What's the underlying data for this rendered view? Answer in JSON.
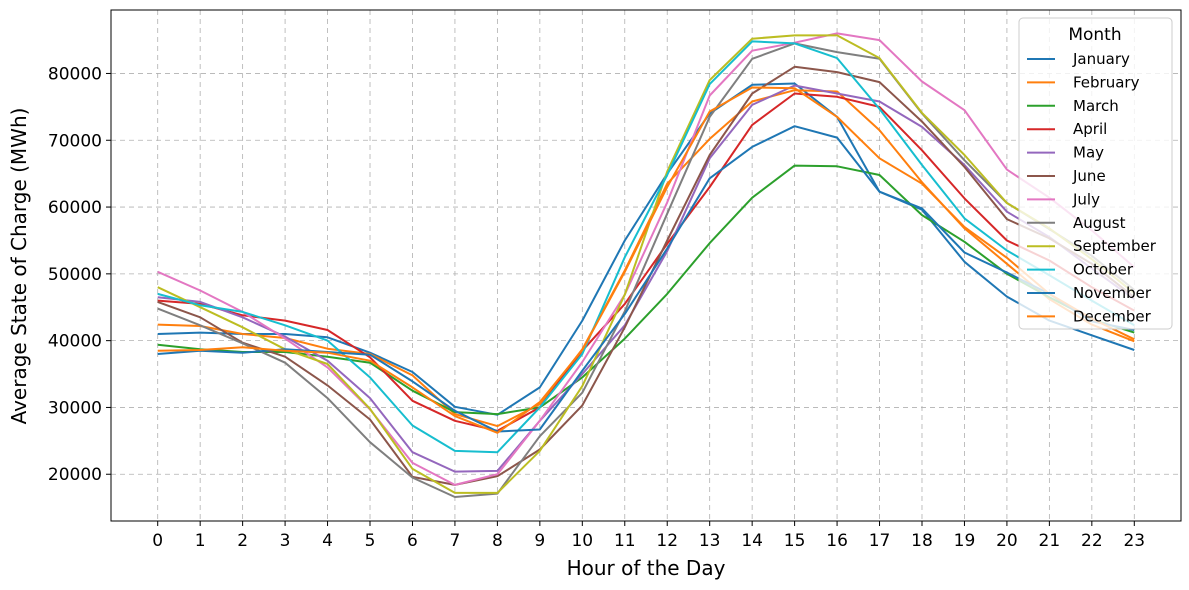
{
  "chart_data": {
    "type": "line",
    "xlabel": "Hour of the Day",
    "ylabel": "Average State of Charge (MWh)",
    "x": [
      0,
      1,
      2,
      3,
      4,
      5,
      6,
      7,
      8,
      9,
      10,
      11,
      12,
      13,
      14,
      15,
      16,
      17,
      18,
      19,
      20,
      21,
      22,
      23
    ],
    "xlim": [
      -1.1,
      24.1
    ],
    "ylim": [
      13000,
      89500
    ],
    "yticks": [
      20000,
      30000,
      40000,
      50000,
      60000,
      70000,
      80000
    ],
    "grid": true,
    "legend": {
      "title": "Month",
      "placement": "top-right"
    },
    "series": [
      {
        "name": "January",
        "color": "#1f77b4",
        "values": [
          41000,
          41200,
          41000,
          41000,
          40500,
          38200,
          35300,
          30100,
          28900,
          33000,
          43000,
          55000,
          65000,
          74000,
          78300,
          78500,
          73500,
          62300,
          59600,
          51800,
          46600,
          43000,
          40800,
          38600
        ]
      },
      {
        "name": "February",
        "color": "#ff7f0e",
        "values": [
          42400,
          42200,
          41000,
          40400,
          38800,
          38000,
          34800,
          29000,
          27200,
          30500,
          38700,
          50500,
          63500,
          70200,
          75800,
          77500,
          77300,
          71500,
          63700,
          56800,
          51500,
          46200,
          42400,
          39900
        ]
      },
      {
        "name": "March",
        "color": "#2ca02c",
        "values": [
          39400,
          38700,
          38300,
          38300,
          37600,
          36700,
          32500,
          29300,
          29000,
          30000,
          34500,
          40300,
          47000,
          54600,
          61400,
          66200,
          66100,
          64800,
          58800,
          54800,
          50000,
          46500,
          43200,
          41200
        ]
      },
      {
        "name": "April",
        "color": "#d62728",
        "values": [
          46000,
          45500,
          43800,
          43000,
          41600,
          37500,
          31000,
          28000,
          26500,
          30000,
          38500,
          45500,
          54500,
          63000,
          72300,
          77000,
          76500,
          75000,
          68500,
          61300,
          55000,
          52000,
          48000,
          44500
        ]
      },
      {
        "name": "May",
        "color": "#9467bd",
        "values": [
          46500,
          45800,
          43500,
          40600,
          37000,
          31400,
          23300,
          20400,
          20500,
          28000,
          35000,
          42300,
          53400,
          67300,
          75300,
          78200,
          77000,
          75800,
          72000,
          66300,
          59300,
          55500,
          50800,
          46200
        ]
      },
      {
        "name": "June",
        "color": "#8c564b",
        "values": [
          45800,
          43500,
          39700,
          37600,
          33300,
          28200,
          19600,
          18400,
          19700,
          23700,
          30300,
          42000,
          55000,
          67800,
          77000,
          81000,
          80200,
          78700,
          72800,
          66000,
          58200,
          55300,
          51500,
          46500
        ]
      },
      {
        "name": "July",
        "color": "#e377c2",
        "values": [
          50300,
          47500,
          44300,
          40300,
          36000,
          29700,
          21700,
          18400,
          20000,
          28000,
          36800,
          46900,
          60700,
          76700,
          83400,
          84600,
          86000,
          85000,
          78800,
          74500,
          65600,
          61400,
          56500,
          51000
        ]
      },
      {
        "name": "August",
        "color": "#7f7f7f",
        "values": [
          44800,
          42300,
          39600,
          36700,
          31400,
          24800,
          19500,
          16600,
          17100,
          25700,
          32200,
          44400,
          59000,
          73500,
          82200,
          84500,
          83200,
          82200,
          74000,
          67000,
          60600,
          56700,
          52700,
          47600
        ]
      },
      {
        "name": "September",
        "color": "#bcbd22",
        "values": [
          48000,
          45000,
          42000,
          38700,
          36500,
          29800,
          20800,
          17200,
          17200,
          23500,
          33200,
          46900,
          65300,
          79000,
          85200,
          85700,
          85700,
          82300,
          74100,
          67800,
          60600,
          56800,
          52200,
          47100
        ]
      },
      {
        "name": "October",
        "color": "#17becf",
        "values": [
          47000,
          45300,
          44300,
          42300,
          40000,
          34500,
          27300,
          23500,
          23300,
          30000,
          38000,
          52500,
          64800,
          78400,
          84800,
          84500,
          82300,
          74700,
          66300,
          58300,
          53500,
          49800,
          46000,
          42300
        ]
      },
      {
        "name": "November",
        "color": "#1f77b4",
        "values": [
          38000,
          38500,
          38200,
          38700,
          38300,
          37900,
          33900,
          29500,
          26400,
          26700,
          35500,
          44000,
          53800,
          64300,
          69000,
          72100,
          70400,
          62300,
          59800,
          53200,
          50200,
          47000,
          42900,
          41600
        ]
      },
      {
        "name": "December",
        "color": "#ff7f0e",
        "values": [
          38500,
          38600,
          39000,
          38500,
          38200,
          37000,
          33000,
          28700,
          26200,
          30800,
          38600,
          50300,
          63000,
          74300,
          77900,
          77800,
          73500,
          67300,
          63500,
          57000,
          52400,
          47000,
          43300,
          40200
        ]
      }
    ]
  }
}
